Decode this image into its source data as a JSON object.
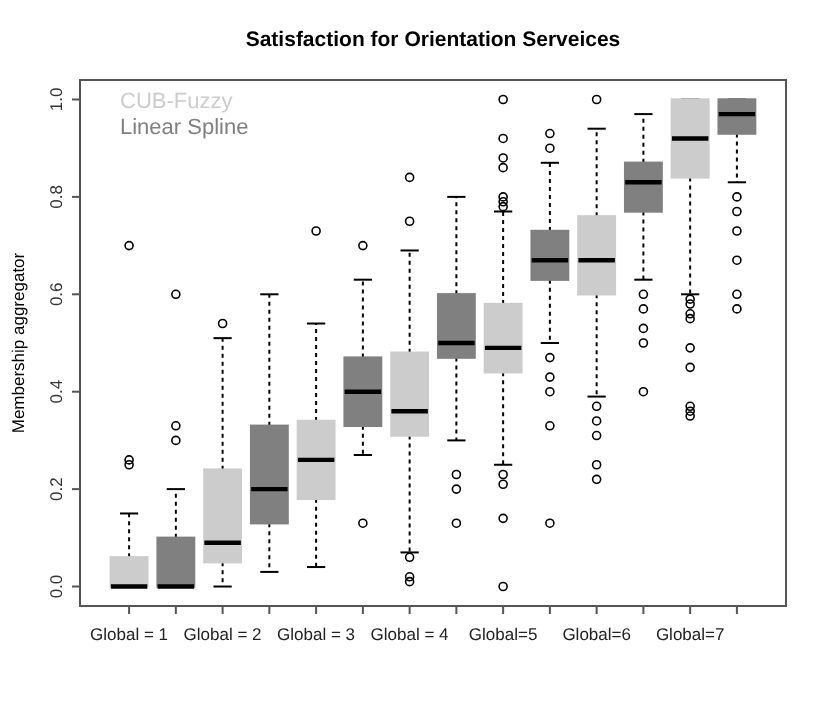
{
  "chart_data": {
    "type": "box",
    "title": "Satisfaction for Orientation Serveices",
    "ylabel": "Membership aggregator",
    "categories": [
      "Global = 1",
      null,
      "Global = 2",
      null,
      "Global = 3",
      null,
      "Global = 4",
      null,
      "Global=5",
      null,
      "Global=6",
      null,
      "Global=7",
      null
    ],
    "ylim": [
      -0.04,
      1.04
    ],
    "yticks": [
      {
        "value": 0,
        "label": "0.0"
      },
      0.2,
      0.4,
      0.6,
      0.8,
      {
        "value": 1,
        "label": "1.0"
      }
    ],
    "legend": "top left",
    "grid": false,
    "series": [
      {
        "name": "CUB-Fuzzy",
        "color": "#cccccc",
        "boxes": [
          {
            "low": 0,
            "q1": 0,
            "median": 0,
            "q3": 0.06,
            "high": 0.15,
            "outliers": [
              0.25,
              0.26,
              0.7
            ]
          },
          null,
          {
            "low": 0,
            "q1": 0.05,
            "median": 0.09,
            "q3": 0.24,
            "high": 0.51,
            "outliers": [
              0.54
            ]
          },
          null,
          {
            "low": 0.04,
            "q1": 0.18,
            "median": 0.26,
            "q3": 0.34,
            "high": 0.54,
            "outliers": [
              0.73
            ]
          },
          null,
          {
            "low": 0.07,
            "q1": 0.31,
            "median": 0.36,
            "q3": 0.48,
            "high": 0.69,
            "outliers": [
              0.06,
              0.02,
              0.01,
              0.75,
              0.84
            ]
          },
          null,
          {
            "low": 0.25,
            "q1": 0.44,
            "median": 0.49,
            "q3": 0.58,
            "high": 0.77,
            "outliers": [
              0,
              0.14,
              0.21,
              0.23,
              0.78,
              0.79,
              0.8,
              0.86,
              0.88,
              0.92,
              1
            ]
          },
          null,
          {
            "low": 0.39,
            "q1": 0.6,
            "median": 0.67,
            "q3": 0.76,
            "high": 0.94,
            "outliers": [
              0.22,
              0.25,
              0.31,
              0.34,
              0.37,
              1
            ]
          },
          null,
          {
            "low": 0.6,
            "q1": 0.84,
            "median": 0.92,
            "q3": 1,
            "high": 1,
            "outliers": [
              0.35,
              0.36,
              0.37,
              0.45,
              0.49,
              0.55,
              0.56,
              0.58,
              0.59
            ]
          },
          null
        ]
      },
      {
        "name": "Linear Spline",
        "color": "#808080",
        "boxes": [
          null,
          {
            "low": 0,
            "q1": 0,
            "median": 0,
            "q3": 0.1,
            "high": 0.2,
            "outliers": [
              0.3,
              0.33,
              0.6
            ]
          },
          null,
          {
            "low": 0.03,
            "q1": 0.13,
            "median": 0.2,
            "q3": 0.33,
            "high": 0.6
          },
          null,
          {
            "low": 0.27,
            "q1": 0.33,
            "median": 0.4,
            "q3": 0.47,
            "high": 0.63,
            "outliers": [
              0.13,
              0.7
            ]
          },
          null,
          {
            "low": 0.3,
            "q1": 0.47,
            "median": 0.5,
            "q3": 0.6,
            "high": 0.8,
            "outliers": [
              0.13,
              0.2,
              0.23
            ]
          },
          null,
          {
            "low": 0.5,
            "q1": 0.63,
            "median": 0.67,
            "q3": 0.73,
            "high": 0.87,
            "outliers": [
              0.13,
              0.33,
              0.4,
              0.43,
              0.47,
              0.9,
              0.93
            ]
          },
          null,
          {
            "low": 0.63,
            "q1": 0.77,
            "median": 0.83,
            "q3": 0.87,
            "high": 0.97,
            "outliers": [
              0.4,
              0.5,
              0.53,
              0.57,
              0.6
            ]
          },
          null,
          {
            "low": 0.83,
            "q1": 0.93,
            "median": 0.97,
            "q3": 1,
            "high": 1,
            "outliers": [
              0.57,
              0.6,
              0.67,
              0.73,
              0.77,
              0.8
            ]
          }
        ]
      }
    ]
  }
}
